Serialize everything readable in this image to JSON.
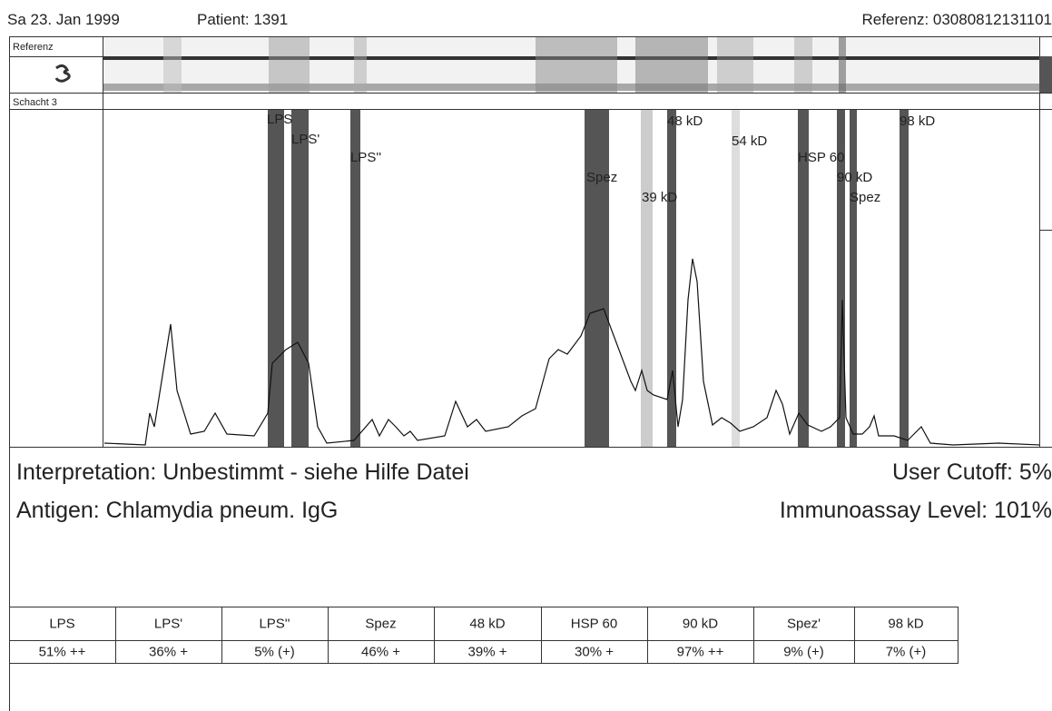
{
  "header": {
    "date": "Sa 23. Jan  1999",
    "patient": "Patient: 1391",
    "reference": "Referenz: 03080812131101"
  },
  "strip": {
    "reference_label": "Referenz",
    "lane_label": "Schacht 3"
  },
  "bands": [
    {
      "label": "LPS"
    },
    {
      "label": "LPS'"
    },
    {
      "label": "LPS''"
    },
    {
      "label": "Spez"
    },
    {
      "label": "39 kD"
    },
    {
      "label": "48 kD"
    },
    {
      "label": "54 kD"
    },
    {
      "label": "HSP 60"
    },
    {
      "label": "90 kD"
    },
    {
      "label": "Spez"
    },
    {
      "label": "98 kD"
    }
  ],
  "result": {
    "interpretation": "Interpretation: Unbestimmt - siehe Hilfe Datei",
    "user_cutoff": "User Cutoff: 5%",
    "antigen": "Antigen: Chlamydia pneum. IgG",
    "immunoassay_level": "Immunoassay Level: 101%"
  },
  "table": {
    "headers": [
      "LPS",
      "LPS'",
      "LPS''",
      "Spez",
      "48 kD",
      "HSP 60",
      "90 kD",
      "Spez'",
      "98 kD"
    ],
    "rows": [
      [
        "51% ++",
        "36% +",
        "5% (+)",
        "46% +",
        "39% +",
        "30% +",
        "97% ++",
        "9% (+)",
        "7% (+)"
      ]
    ]
  }
}
